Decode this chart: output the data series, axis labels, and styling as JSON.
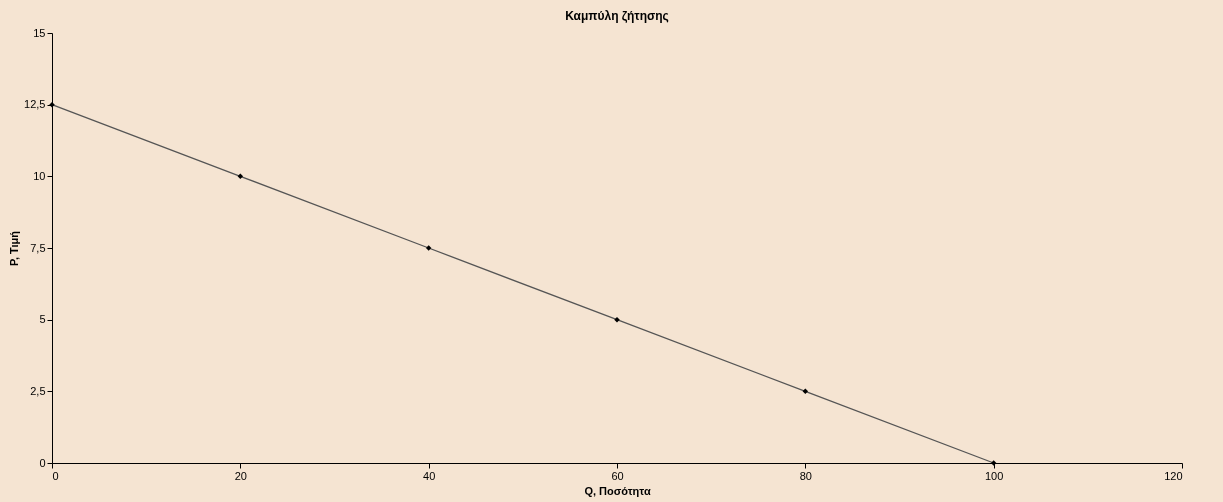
{
  "chart_data": {
    "type": "line",
    "title": "Καμπύλη ζήτησης",
    "xlabel": "Q, Ποσότητα",
    "ylabel": "P, Τιμή",
    "x": [
      0,
      20,
      40,
      60,
      80,
      100
    ],
    "series": [
      {
        "color": "#555555",
        "values": [
          12.5,
          10,
          7.5,
          5,
          2.5,
          0
        ]
      }
    ],
    "marker": "diamond",
    "line_style": "solid",
    "grid": false,
    "xlim": [
      0,
      120
    ],
    "xticks": [
      0,
      20,
      40,
      60,
      80,
      100,
      120
    ],
    "ylim": [
      0,
      15
    ],
    "yticks": [
      0,
      {
        "value": 2.5,
        "label": "2,5"
      },
      5,
      {
        "value": 7.5,
        "label": "7,5"
      },
      10,
      {
        "value": 12.5,
        "label": "12,5"
      },
      15
    ]
  }
}
